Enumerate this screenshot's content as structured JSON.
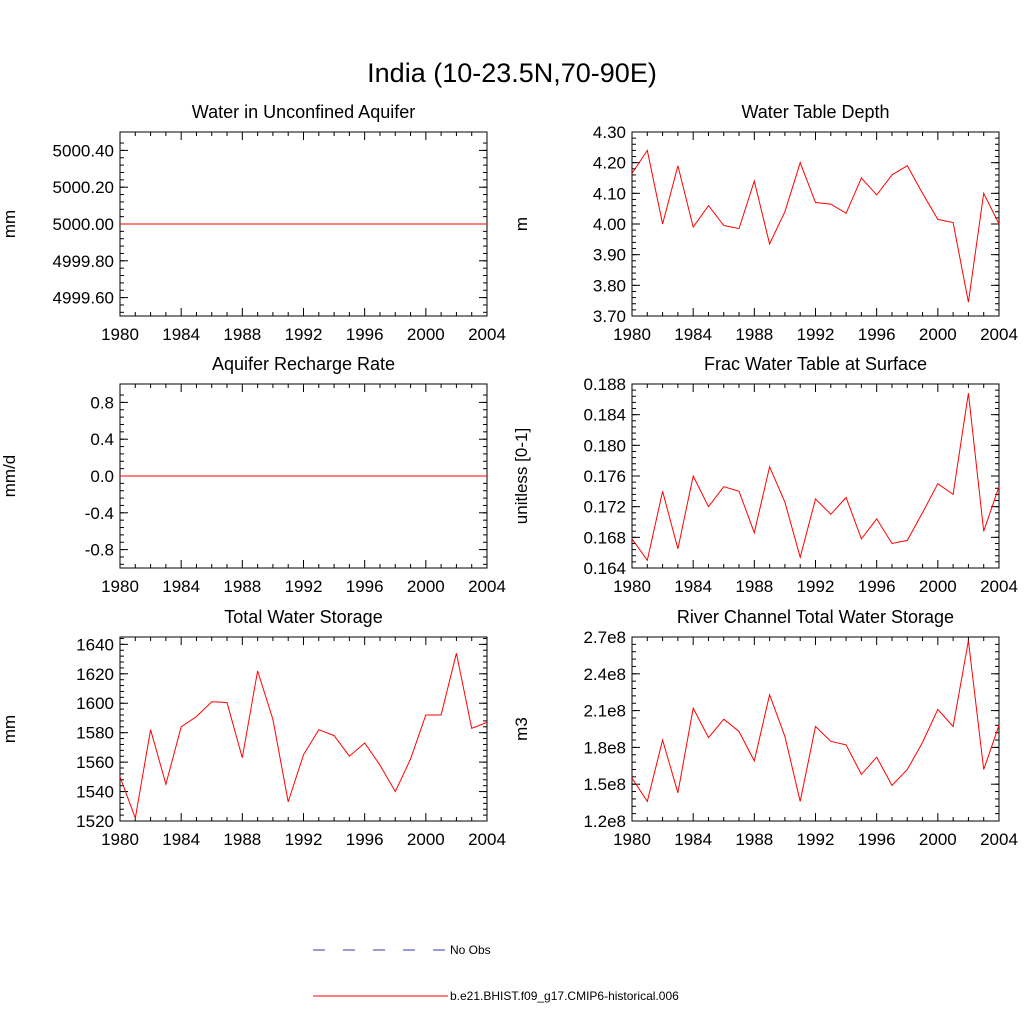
{
  "title": "India (10-23.5N,70-90E)",
  "colors": {
    "model": "#ff0000",
    "obs": "#3a3aa8",
    "axis": "#000000"
  },
  "legend": {
    "obs_label": "No Obs",
    "model_label": "b.e21.BHIST.f09_g17.CMIP6-historical.006"
  },
  "chart_data": [
    {
      "type": "line",
      "title": "Water in Unconfined Aquifer",
      "ylabel": "mm",
      "xlim": [
        1980,
        2004
      ],
      "xticks": [
        "1980",
        "1984",
        "1988",
        "1992",
        "1996",
        "2000",
        "2004"
      ],
      "ylim": [
        4999.5,
        5000.5
      ],
      "yticks": [
        4999.6,
        4999.8,
        5000.0,
        5000.2,
        5000.4
      ],
      "yticklabels": [
        "4999.60",
        "4999.80",
        "5000.00",
        "5000.20",
        "5000.40"
      ],
      "series": [
        {
          "x": [
            1980,
            2004
          ],
          "values": [
            5000.0,
            5000.0
          ]
        }
      ]
    },
    {
      "type": "line",
      "title": "Water Table Depth",
      "ylabel": "m",
      "xlim": [
        1980,
        2004
      ],
      "xticks": [
        "1980",
        "1984",
        "1988",
        "1992",
        "1996",
        "2000",
        "2004"
      ],
      "ylim": [
        3.7,
        4.3
      ],
      "yticks": [
        3.7,
        3.8,
        3.9,
        4.0,
        4.1,
        4.2,
        4.3
      ],
      "yticklabels": [
        "3.70",
        "3.80",
        "3.90",
        "4.00",
        "4.10",
        "4.20",
        "4.30"
      ],
      "series": [
        {
          "x": [
            1980,
            1981,
            1982,
            1983,
            1984,
            1985,
            1986,
            1987,
            1988,
            1989,
            1990,
            1991,
            1992,
            1993,
            1994,
            1995,
            1996,
            1997,
            1998,
            1999,
            2000,
            2001,
            2002,
            2003,
            2004
          ],
          "values": [
            4.165,
            4.24,
            4.0,
            4.19,
            3.99,
            4.06,
            3.995,
            3.985,
            4.14,
            3.935,
            4.04,
            4.2,
            4.07,
            4.065,
            4.035,
            4.15,
            4.095,
            4.16,
            4.19,
            4.1,
            4.015,
            4.005,
            3.745,
            4.1,
            4.0
          ]
        }
      ]
    },
    {
      "type": "line",
      "title": "Aquifer Recharge Rate",
      "ylabel": "mm/d",
      "xlim": [
        1980,
        2004
      ],
      "xticks": [
        "1980",
        "1984",
        "1988",
        "1992",
        "1996",
        "2000",
        "2004"
      ],
      "ylim": [
        -1.0,
        1.0
      ],
      "yticks": [
        -0.8,
        -0.4,
        0.0,
        0.4,
        0.8
      ],
      "yticklabels": [
        "-0.8",
        "-0.4",
        "0.0",
        "0.4",
        "0.8"
      ],
      "series": [
        {
          "x": [
            1980,
            2004
          ],
          "values": [
            0.0,
            0.0
          ]
        }
      ]
    },
    {
      "type": "line",
      "title": "Frac Water Table at Surface",
      "ylabel": "unitless [0-1]",
      "xlim": [
        1980,
        2004
      ],
      "xticks": [
        "1980",
        "1984",
        "1988",
        "1992",
        "1996",
        "2000",
        "2004"
      ],
      "ylim": [
        0.164,
        0.188
      ],
      "yticks": [
        0.164,
        0.168,
        0.172,
        0.176,
        0.18,
        0.184,
        0.188
      ],
      "yticklabels": [
        "0.164",
        "0.168",
        "0.172",
        "0.176",
        "0.180",
        "0.184",
        "0.188"
      ],
      "series": [
        {
          "x": [
            1980,
            1981,
            1982,
            1983,
            1984,
            1985,
            1986,
            1987,
            1988,
            1989,
            1990,
            1991,
            1992,
            1993,
            1994,
            1995,
            1996,
            1997,
            1998,
            1999,
            2000,
            2001,
            2002,
            2003,
            2004
          ],
          "values": [
            0.1678,
            0.165,
            0.174,
            0.1665,
            0.176,
            0.172,
            0.1746,
            0.174,
            0.1686,
            0.1772,
            0.1726,
            0.1654,
            0.173,
            0.171,
            0.1732,
            0.1678,
            0.1704,
            0.1672,
            0.1676,
            0.1712,
            0.175,
            0.1736,
            0.1868,
            0.1688,
            0.1746
          ]
        }
      ]
    },
    {
      "type": "line",
      "title": "Total Water Storage",
      "ylabel": "mm",
      "xlim": [
        1980,
        2004
      ],
      "xticks": [
        "1980",
        "1984",
        "1988",
        "1992",
        "1996",
        "2000",
        "2004"
      ],
      "ylim": [
        1520,
        1645
      ],
      "yticks": [
        1520,
        1540,
        1560,
        1580,
        1600,
        1620,
        1640
      ],
      "yticklabels": [
        "1520",
        "1540",
        "1560",
        "1580",
        "1600",
        "1620",
        "1640"
      ],
      "series": [
        {
          "x": [
            1980,
            1981,
            1982,
            1983,
            1984,
            1985,
            1986,
            1987,
            1988,
            1989,
            1990,
            1991,
            1992,
            1993,
            1994,
            1995,
            1996,
            1997,
            1998,
            1999,
            2000,
            2001,
            2002,
            2003,
            2004
          ],
          "values": [
            1550,
            1522,
            1582,
            1545,
            1584,
            1591,
            1601,
            1600.5,
            1563,
            1622,
            1589,
            1533,
            1565,
            1582,
            1578,
            1564,
            1573,
            1558,
            1540,
            1562,
            1592,
            1592,
            1634,
            1583,
            1587
          ]
        }
      ]
    },
    {
      "type": "line",
      "title": "River Channel Total Water Storage",
      "ylabel": "m3",
      "xlim": [
        1980,
        2004
      ],
      "xticks": [
        "1980",
        "1984",
        "1988",
        "1992",
        "1996",
        "2000",
        "2004"
      ],
      "ylim": [
        120000000.0,
        270000000.0
      ],
      "yticks": [
        120000000.0,
        150000000.0,
        180000000.0,
        210000000.0,
        240000000.0,
        270000000.0
      ],
      "yticklabels": [
        "1.2e8",
        "1.5e8",
        "1.8e8",
        "2.1e8",
        "2.4e8",
        "2.7e8"
      ],
      "series": [
        {
          "x": [
            1980,
            1981,
            1982,
            1983,
            1984,
            1985,
            1986,
            1987,
            1988,
            1989,
            1990,
            1991,
            1992,
            1993,
            1994,
            1995,
            1996,
            1997,
            1998,
            1999,
            2000,
            2001,
            2002,
            2003,
            2004
          ],
          "values": [
            155000000.0,
            136000000.0,
            186000000.0,
            143000000.0,
            212000000.0,
            188000000.0,
            203000000.0,
            193000000.0,
            169000000.0,
            223000000.0,
            189000000.0,
            136000000.0,
            197000000.0,
            185000000.0,
            182000000.0,
            158000000.0,
            172000000.0,
            149000000.0,
            162000000.0,
            184000000.0,
            211000000.0,
            197000000.0,
            267000000.0,
            162000000.0,
            198000000.0
          ]
        }
      ]
    }
  ]
}
